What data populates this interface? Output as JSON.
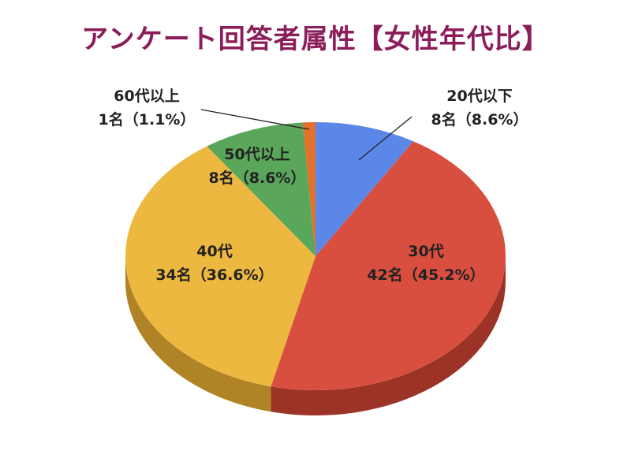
{
  "chart_data": {
    "type": "pie",
    "title": "アンケート回答者属性【女性年代比】",
    "start_category": "20代以下",
    "direction": "clockwise",
    "three_d": true,
    "title_color": "#8B1E5A",
    "slices": [
      {
        "label": "20代以下",
        "count_label": "8名（8.6%）",
        "count": 8,
        "percent": 8.6,
        "color": "#5B87E8",
        "side_color": "#3F62AE"
      },
      {
        "label": "30代",
        "count_label": "42名（45.2%）",
        "count": 42,
        "percent": 45.2,
        "color": "#D94F3F",
        "side_color": "#9C3327"
      },
      {
        "label": "40代",
        "count_label": "34名（36.6%）",
        "count": 34,
        "percent": 36.6,
        "color": "#EDB83F",
        "side_color": "#B08426"
      },
      {
        "label": "50代以上",
        "count_label": "8名（8.6%）",
        "count": 8,
        "percent": 8.6,
        "color": "#5AA65A",
        "side_color": "#3F7A3F"
      },
      {
        "label": "60代以上",
        "count_label": "1名（1.1%）",
        "count": 1,
        "percent": 1.1,
        "color": "#E2712B",
        "side_color": "#A8501E"
      }
    ]
  }
}
